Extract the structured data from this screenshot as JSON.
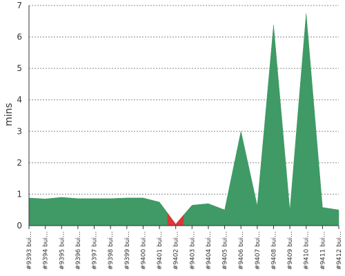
{
  "chart_data": {
    "type": "area",
    "y_label": "mins",
    "categories": [
      "#9393 bui…",
      "#9394 bui…",
      "#9395 bui…",
      "#9396 bui…",
      "#9397 bui…",
      "#9398 bui…",
      "#9399 bui…",
      "#9400 bui…",
      "#9401 bui…",
      "#9402 bui…",
      "#9403 bui…",
      "#9404 bui…",
      "#9405 bui…",
      "#9406 bui…",
      "#9407 bui…",
      "#9408 bui…",
      "#9409 bui…",
      "#9410 bui…",
      "#9411 bui…",
      "#9412 bui…"
    ],
    "values": [
      0.88,
      0.85,
      0.9,
      0.86,
      0.86,
      0.86,
      0.88,
      0.88,
      0.75,
      0.05,
      0.65,
      0.7,
      0.5,
      3.0,
      0.63,
      6.38,
      0.48,
      6.75,
      0.58,
      0.5
    ],
    "colors": [
      "#3f9a66",
      "#3f9a66",
      "#3f9a66",
      "#3f9a66",
      "#3f9a66",
      "#3f9a66",
      "#3f9a66",
      "#3f9a66",
      "#3f9a66",
      "#d9383a",
      "#3f9a66",
      "#3f9a66",
      "#3f9a66",
      "#3f9a66",
      "#3f9a66",
      "#3f9a66",
      "#3f9a66",
      "#3f9a66",
      "#3f9a66",
      "#3f9a66"
    ],
    "ylim": [
      0,
      7
    ],
    "yticks": [
      0,
      1,
      2,
      3,
      4,
      5,
      6,
      7
    ],
    "grid": true
  }
}
